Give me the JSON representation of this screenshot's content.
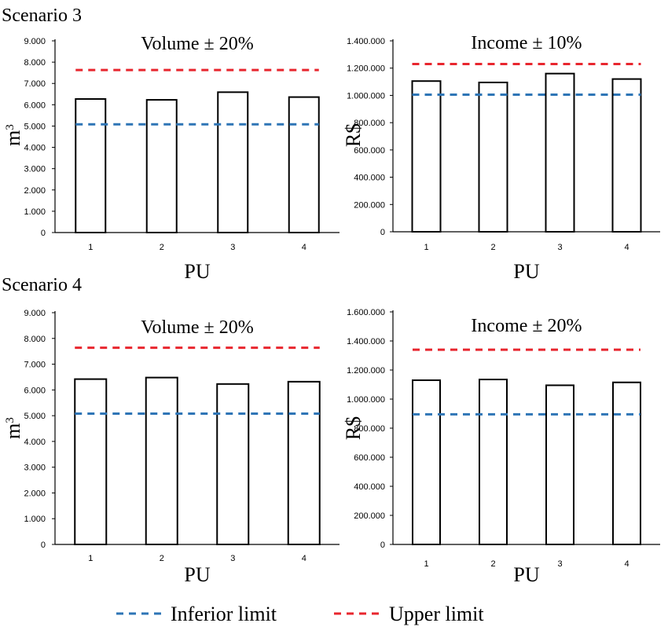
{
  "colors": {
    "inferior": "#2E75B6",
    "upper": "#E8262E",
    "bar_fill": "#ffffff",
    "bar_stroke": "#000000"
  },
  "legend": [
    {
      "key": "inferior",
      "label": "Inferior limit"
    },
    {
      "key": "upper",
      "label": "Upper limit"
    }
  ],
  "scenarios": [
    "Scenario 3",
    "Scenario 4"
  ],
  "chart_data": [
    {
      "type": "bar",
      "scenario": "Scenario 3",
      "title": "Volume ± 20%",
      "xlabel": "PU",
      "ylabel": "m3",
      "categories": [
        "1",
        "2",
        "3",
        "4"
      ],
      "values": [
        6270,
        6230,
        6590,
        6360
      ],
      "ylim": [
        0,
        9000
      ],
      "yticks": [
        "0",
        "1.000",
        "2.000",
        "3.000",
        "4.000",
        "5.000",
        "6.000",
        "7.000",
        "8.000",
        "9.000"
      ],
      "inferior_limit": 5080,
      "upper_limit": 7630
    },
    {
      "type": "bar",
      "scenario": "Scenario 3",
      "title": "Income ± 10%",
      "xlabel": "PU",
      "ylabel": "R$",
      "categories": [
        "1",
        "2",
        "3",
        "4"
      ],
      "values": [
        1105000,
        1095000,
        1160000,
        1120000
      ],
      "ylim": [
        0,
        1400000
      ],
      "yticks": [
        "0",
        "200.000",
        "400.000",
        "600.000",
        "800.000",
        "1.000.000",
        "1.200.000",
        "1.400.000"
      ],
      "inferior_limit": 1005000,
      "upper_limit": 1230000
    },
    {
      "type": "bar",
      "scenario": "Scenario 4",
      "title": "Volume ± 20%",
      "xlabel": "PU",
      "ylabel": "m3",
      "categories": [
        "1",
        "2",
        "3",
        "4"
      ],
      "values": [
        6420,
        6480,
        6230,
        6320
      ],
      "ylim": [
        0,
        9000
      ],
      "yticks": [
        "0",
        "1.000",
        "2.000",
        "3.000",
        "4.000",
        "5.000",
        "6.000",
        "7.000",
        "8.000",
        "9.000"
      ],
      "inferior_limit": 5080,
      "upper_limit": 7640
    },
    {
      "type": "bar",
      "scenario": "Scenario 4",
      "title": "Income ± 20%",
      "xlabel": "PU",
      "ylabel": "R$",
      "categories": [
        "1",
        "2",
        "3",
        "4"
      ],
      "values": [
        1130000,
        1135000,
        1095000,
        1115000
      ],
      "ylim": [
        0,
        1600000
      ],
      "yticks": [
        "0",
        "200.000",
        "400.000",
        "600.000",
        "800.000",
        "1.000.000",
        "1.200.000",
        "1.400.000",
        "1.600.000"
      ],
      "inferior_limit": 895000,
      "upper_limit": 1340000
    }
  ]
}
